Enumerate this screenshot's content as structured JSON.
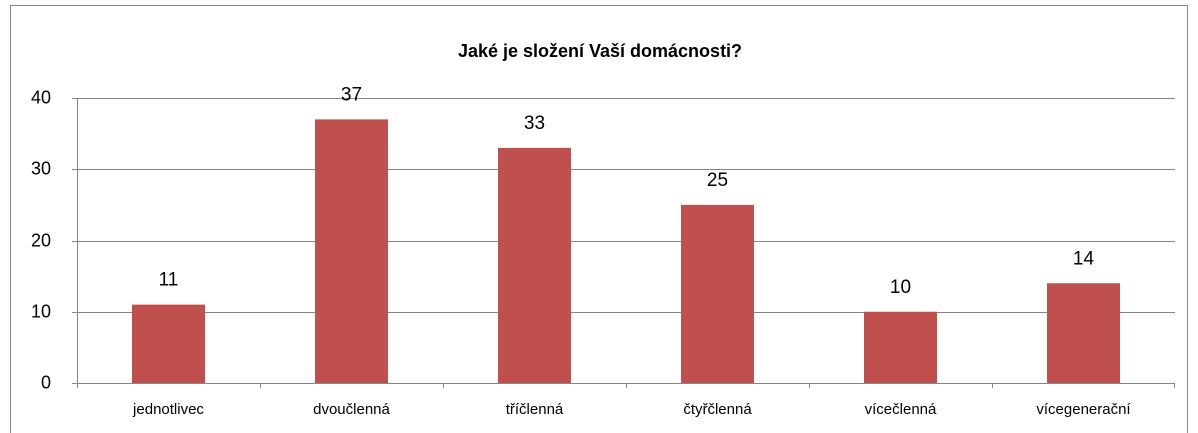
{
  "chart_data": {
    "type": "bar",
    "title": "Jaké je složení Vaší domácnosti?",
    "categories": [
      "jednotlivec",
      "dvoučlenná",
      "tříčlenná",
      "čtyřčlenná",
      "vícečlenná",
      "vícegenerační"
    ],
    "values": [
      11,
      37,
      33,
      25,
      10,
      14
    ],
    "color": "#c0504d",
    "ylim": [
      0,
      40
    ],
    "yticks": [
      0,
      10,
      20,
      30,
      40
    ],
    "grid": true,
    "data_labels": true
  }
}
